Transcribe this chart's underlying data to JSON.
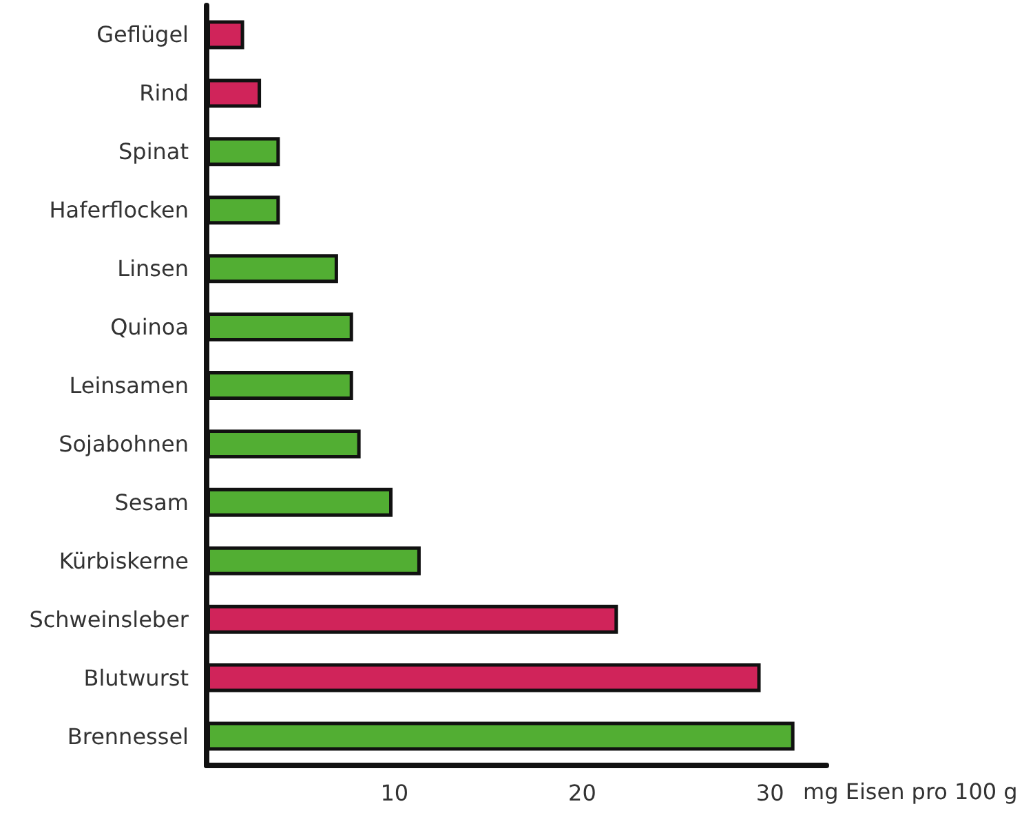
{
  "chart_data": {
    "type": "bar",
    "orientation": "horizontal",
    "categories": [
      "Geflügel",
      "Rind",
      "Spinat",
      "Haferflocken",
      "Linsen",
      "Quinoa",
      "Leinsamen",
      "Sojabohnen",
      "Sesam",
      "Kürbiskerne",
      "Schweinsleber",
      "Blutwurst",
      "Brennessel"
    ],
    "values": [
      2,
      2.9,
      3.9,
      3.9,
      7,
      7.8,
      7.8,
      8.2,
      9.9,
      11.4,
      21.9,
      29.5,
      31.3
    ],
    "colors": [
      "#d0245a",
      "#d0245a",
      "#52ae33",
      "#52ae33",
      "#52ae33",
      "#52ae33",
      "#52ae33",
      "#52ae33",
      "#52ae33",
      "#52ae33",
      "#d0245a",
      "#d0245a",
      "#52ae33"
    ],
    "xlabel": "mg Eisen pro 100 g",
    "xlim": [
      0,
      33
    ],
    "xticks": [
      10,
      20,
      30
    ],
    "grid": false
  }
}
